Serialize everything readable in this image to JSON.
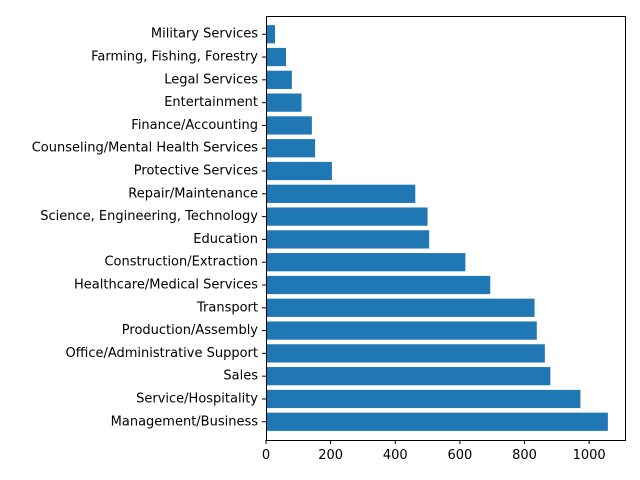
{
  "chart_data": {
    "type": "bar",
    "orientation": "horizontal",
    "categories": [
      "Management/Business",
      "Service/Hospitality",
      "Sales",
      "Office/Administrative Support",
      "Production/Assembly",
      "Transport",
      "Healthcare/Medical Services",
      "Construction/Extraction",
      "Education",
      "Science, Engineering, Technology",
      "Repair/Maintenance",
      "Protective Services",
      "Counseling/Mental Health Services",
      "Finance/Accounting",
      "Entertainment",
      "Legal Services",
      "Farming, Fishing, Forestry",
      "Military Services"
    ],
    "values": [
      1058,
      973,
      880,
      863,
      838,
      831,
      694,
      617,
      505,
      500,
      462,
      204,
      152,
      142,
      110,
      80,
      62,
      28
    ],
    "title": "",
    "xlabel": "",
    "ylabel": "",
    "xlim": [
      0,
      1111
    ],
    "xticks": [
      0,
      200,
      400,
      600,
      800,
      1000
    ],
    "bar_color": "#1f77b4",
    "grid": false,
    "legend": "none"
  }
}
